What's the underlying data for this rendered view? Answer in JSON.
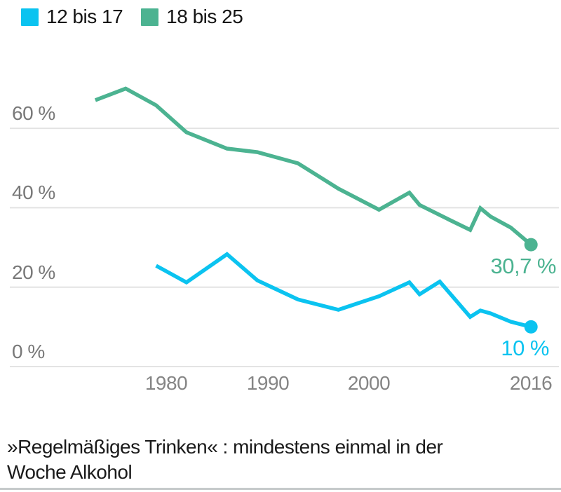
{
  "legend": {
    "items": [
      {
        "label": "12 bis 17",
        "color": "#0bc3f0"
      },
      {
        "label": "18 bis 25",
        "color": "#4cb391"
      }
    ]
  },
  "chart_data": {
    "type": "line",
    "title": "",
    "xlabel": "",
    "ylabel": "",
    "grid": "horizontal",
    "grid_color": "#e3e3e3",
    "legend_position": "top-left",
    "x_axis": {
      "range": [
        1972,
        2017
      ],
      "ticks": [
        {
          "year": 1980,
          "label": "1980"
        },
        {
          "year": 1990,
          "label": "1990"
        },
        {
          "year": 2000,
          "label": "2000"
        },
        {
          "year": 2016,
          "label": "2016"
        }
      ]
    },
    "y_axis": {
      "unit": "%",
      "range": [
        0,
        75
      ],
      "ticks": [
        {
          "value": 60,
          "label": "60 %"
        },
        {
          "value": 40,
          "label": "40 %"
        },
        {
          "value": 20,
          "label": "20 %"
        },
        {
          "value": 0,
          "label": "0 %"
        }
      ]
    },
    "series": [
      {
        "name": "12 bis 17",
        "color": "#0bc3f0",
        "end_label": "10 %",
        "points": [
          {
            "year": 1979,
            "value": 25.4
          },
          {
            "year": 1982,
            "value": 21.2
          },
          {
            "year": 1986,
            "value": 28.3
          },
          {
            "year": 1989,
            "value": 21.7
          },
          {
            "year": 1993,
            "value": 16.9
          },
          {
            "year": 1997,
            "value": 14.3
          },
          {
            "year": 2001,
            "value": 17.7
          },
          {
            "year": 2004,
            "value": 21.2
          },
          {
            "year": 2005,
            "value": 18.2
          },
          {
            "year": 2007,
            "value": 21.4
          },
          {
            "year": 2010,
            "value": 12.5
          },
          {
            "year": 2011,
            "value": 14.1
          },
          {
            "year": 2012,
            "value": 13.4
          },
          {
            "year": 2014,
            "value": 11.3
          },
          {
            "year": 2016,
            "value": 10.0
          }
        ]
      },
      {
        "name": "18 bis 25",
        "color": "#4cb391",
        "end_label": "30,7 %",
        "points": [
          {
            "year": 1973,
            "value": 67.1
          },
          {
            "year": 1976,
            "value": 70.0
          },
          {
            "year": 1979,
            "value": 65.8
          },
          {
            "year": 1982,
            "value": 59.0
          },
          {
            "year": 1986,
            "value": 54.9
          },
          {
            "year": 1989,
            "value": 54.0
          },
          {
            "year": 1993,
            "value": 51.2
          },
          {
            "year": 1997,
            "value": 44.8
          },
          {
            "year": 2001,
            "value": 39.5
          },
          {
            "year": 2004,
            "value": 43.8
          },
          {
            "year": 2005,
            "value": 40.7
          },
          {
            "year": 2008,
            "value": 36.9
          },
          {
            "year": 2010,
            "value": 34.4
          },
          {
            "year": 2011,
            "value": 39.9
          },
          {
            "year": 2012,
            "value": 37.8
          },
          {
            "year": 2014,
            "value": 35.0
          },
          {
            "year": 2016,
            "value": 30.7
          }
        ]
      }
    ]
  },
  "footnote": {
    "text": "»Regelmäßiges Trinken« : mindestens einmal in der Woche Alkohol",
    "lines": [
      "»Regelmäßiges Trinken« : mindestens einmal in der",
      "Woche Alkohol"
    ]
  }
}
